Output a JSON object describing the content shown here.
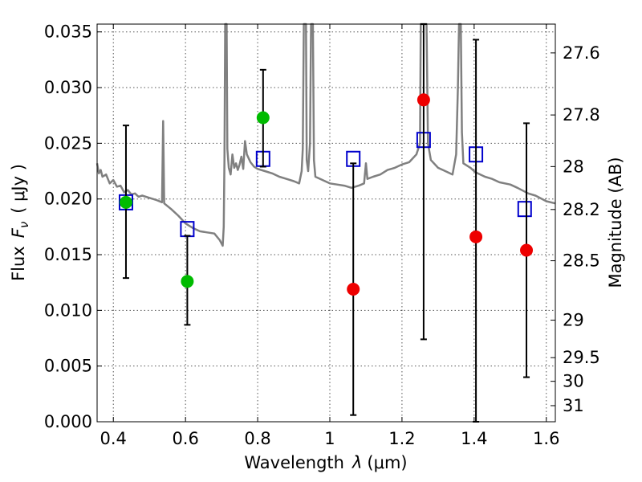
{
  "chart_data": {
    "type": "scatter",
    "title": "",
    "xlabel": "Wavelength",
    "xlabel_symbol": "λ",
    "xlabel_unit": "(μm)",
    "ylabel": "Flux",
    "ylabel_symbol": "F",
    "ylabel_subscript": "ν",
    "ylabel_unit": "( μJy )",
    "y2label": "Magnitude (AB)",
    "xlim": [
      0.355,
      1.625
    ],
    "ylim": [
      0.0,
      0.0357
    ],
    "grid": true,
    "x_ticks": [
      0.4,
      0.6,
      0.8,
      1.0,
      1.2,
      1.4,
      1.6
    ],
    "x_tick_labels": [
      "0.4",
      "0.6",
      "0.8",
      "1",
      "1.2",
      "1.4",
      "1.6"
    ],
    "y_ticks": [
      0.0,
      0.005,
      0.01,
      0.015,
      0.02,
      0.025,
      0.03,
      0.035
    ],
    "y_tick_labels": [
      "0.000",
      "0.005",
      "0.010",
      "0.015",
      "0.020",
      "0.025",
      "0.030",
      "0.035"
    ],
    "mag_ticks": [
      {
        "label": "27.6",
        "mag": 27.6
      },
      {
        "label": "27.8",
        "mag": 27.8
      },
      {
        "label": "28",
        "mag": 28.0
      },
      {
        "label": "28.2",
        "mag": 28.2
      },
      {
        "label": "28.5",
        "mag": 28.5
      },
      {
        "label": "29",
        "mag": 29.0
      },
      {
        "label": "29.5",
        "mag": 29.5
      },
      {
        "label": "30",
        "mag": 30.0
      },
      {
        "label": "31",
        "mag": 31.0
      }
    ],
    "colors": {
      "spectrum": "#808080",
      "model": "#0000cc",
      "green": "#00bb00",
      "red": "#ee0000",
      "errorbar": "#000000"
    },
    "spectrum": [
      [
        0.355,
        0.0232
      ],
      [
        0.36,
        0.0223
      ],
      [
        0.365,
        0.0226
      ],
      [
        0.37,
        0.022
      ],
      [
        0.38,
        0.0222
      ],
      [
        0.39,
        0.0214
      ],
      [
        0.4,
        0.0217
      ],
      [
        0.41,
        0.0211
      ],
      [
        0.42,
        0.0212
      ],
      [
        0.43,
        0.0206
      ],
      [
        0.44,
        0.0208
      ],
      [
        0.45,
        0.0204
      ],
      [
        0.46,
        0.0205
      ],
      [
        0.47,
        0.0202
      ],
      [
        0.48,
        0.0203
      ],
      [
        0.5,
        0.0201
      ],
      [
        0.52,
        0.0199
      ],
      [
        0.535,
        0.0197
      ],
      [
        0.538,
        0.027
      ],
      [
        0.541,
        0.0196
      ],
      [
        0.56,
        0.0191
      ],
      [
        0.58,
        0.0185
      ],
      [
        0.6,
        0.0178
      ],
      [
        0.62,
        0.0174
      ],
      [
        0.64,
        0.0171
      ],
      [
        0.66,
        0.017
      ],
      [
        0.68,
        0.0169
      ],
      [
        0.695,
        0.0163
      ],
      [
        0.703,
        0.0158
      ],
      [
        0.706,
        0.0175
      ],
      [
        0.708,
        0.0235
      ],
      [
        0.71,
        0.0357
      ],
      [
        0.714,
        0.0357
      ],
      [
        0.716,
        0.0245
      ],
      [
        0.72,
        0.0228
      ],
      [
        0.725,
        0.0222
      ],
      [
        0.73,
        0.024
      ],
      [
        0.735,
        0.0228
      ],
      [
        0.74,
        0.0232
      ],
      [
        0.745,
        0.0226
      ],
      [
        0.75,
        0.0231
      ],
      [
        0.755,
        0.0238
      ],
      [
        0.76,
        0.0227
      ],
      [
        0.765,
        0.0252
      ],
      [
        0.77,
        0.024
      ],
      [
        0.78,
        0.0233
      ],
      [
        0.79,
        0.0229
      ],
      [
        0.8,
        0.0227
      ],
      [
        0.82,
        0.0225
      ],
      [
        0.84,
        0.0223
      ],
      [
        0.86,
        0.022
      ],
      [
        0.88,
        0.0218
      ],
      [
        0.9,
        0.0216
      ],
      [
        0.915,
        0.0214
      ],
      [
        0.922,
        0.0225
      ],
      [
        0.925,
        0.0245
      ],
      [
        0.928,
        0.0357
      ],
      [
        0.934,
        0.0357
      ],
      [
        0.936,
        0.0235
      ],
      [
        0.94,
        0.0225
      ],
      [
        0.945,
        0.025
      ],
      [
        0.948,
        0.0357
      ],
      [
        0.953,
        0.0357
      ],
      [
        0.956,
        0.0235
      ],
      [
        0.96,
        0.022
      ],
      [
        0.98,
        0.0217
      ],
      [
        1.0,
        0.0214
      ],
      [
        1.02,
        0.0213
      ],
      [
        1.04,
        0.0212
      ],
      [
        1.06,
        0.021
      ],
      [
        1.08,
        0.0212
      ],
      [
        1.095,
        0.0214
      ],
      [
        1.1,
        0.0232
      ],
      [
        1.104,
        0.0218
      ],
      [
        1.12,
        0.022
      ],
      [
        1.14,
        0.0222
      ],
      [
        1.16,
        0.0226
      ],
      [
        1.18,
        0.0228
      ],
      [
        1.2,
        0.0231
      ],
      [
        1.22,
        0.0233
      ],
      [
        1.24,
        0.024
      ],
      [
        1.25,
        0.025
      ],
      [
        1.252,
        0.0357
      ],
      [
        1.258,
        0.0357
      ],
      [
        1.262,
        0.0357
      ],
      [
        1.268,
        0.0357
      ],
      [
        1.272,
        0.025
      ],
      [
        1.28,
        0.0235
      ],
      [
        1.3,
        0.0228
      ],
      [
        1.32,
        0.0225
      ],
      [
        1.34,
        0.0222
      ],
      [
        1.35,
        0.024
      ],
      [
        1.355,
        0.03
      ],
      [
        1.358,
        0.0357
      ],
      [
        1.363,
        0.0357
      ],
      [
        1.366,
        0.026
      ],
      [
        1.37,
        0.0232
      ],
      [
        1.39,
        0.0228
      ],
      [
        1.4,
        0.0225
      ],
      [
        1.41,
        0.0223
      ],
      [
        1.43,
        0.022
      ],
      [
        1.45,
        0.0218
      ],
      [
        1.47,
        0.0215
      ],
      [
        1.5,
        0.0213
      ],
      [
        1.52,
        0.021
      ],
      [
        1.55,
        0.0205
      ],
      [
        1.57,
        0.0203
      ],
      [
        1.6,
        0.0198
      ],
      [
        1.625,
        0.0196
      ]
    ],
    "model_points": [
      {
        "x": 0.435,
        "y": 0.0197
      },
      {
        "x": 0.605,
        "y": 0.0173
      },
      {
        "x": 0.815,
        "y": 0.0236
      },
      {
        "x": 1.065,
        "y": 0.0236
      },
      {
        "x": 1.26,
        "y": 0.0253
      },
      {
        "x": 1.405,
        "y": 0.024
      },
      {
        "x": 1.54,
        "y": 0.0191
      }
    ],
    "observed_points": [
      {
        "x": 0.435,
        "y": 0.0197,
        "yerr_low": 0.0129,
        "yerr_high": 0.0266,
        "color": "green"
      },
      {
        "x": 0.605,
        "y": 0.0126,
        "yerr_low": 0.0087,
        "yerr_high": 0.0167,
        "color": "green"
      },
      {
        "x": 0.815,
        "y": 0.0273,
        "yerr_low": 0.0229,
        "yerr_high": 0.0316,
        "color": "green"
      },
      {
        "x": 1.065,
        "y": 0.0119,
        "yerr_low": 0.0006,
        "yerr_high": 0.0232,
        "color": "red"
      },
      {
        "x": 1.26,
        "y": 0.0289,
        "yerr_low": 0.0074,
        "yerr_high": 0.0357,
        "color": "red"
      },
      {
        "x": 1.405,
        "y": 0.0166,
        "yerr_low": 0.0,
        "yerr_high": 0.0343,
        "color": "red"
      },
      {
        "x": 1.545,
        "y": 0.0154,
        "yerr_low": 0.004,
        "yerr_high": 0.0268,
        "color": "red"
      }
    ]
  }
}
